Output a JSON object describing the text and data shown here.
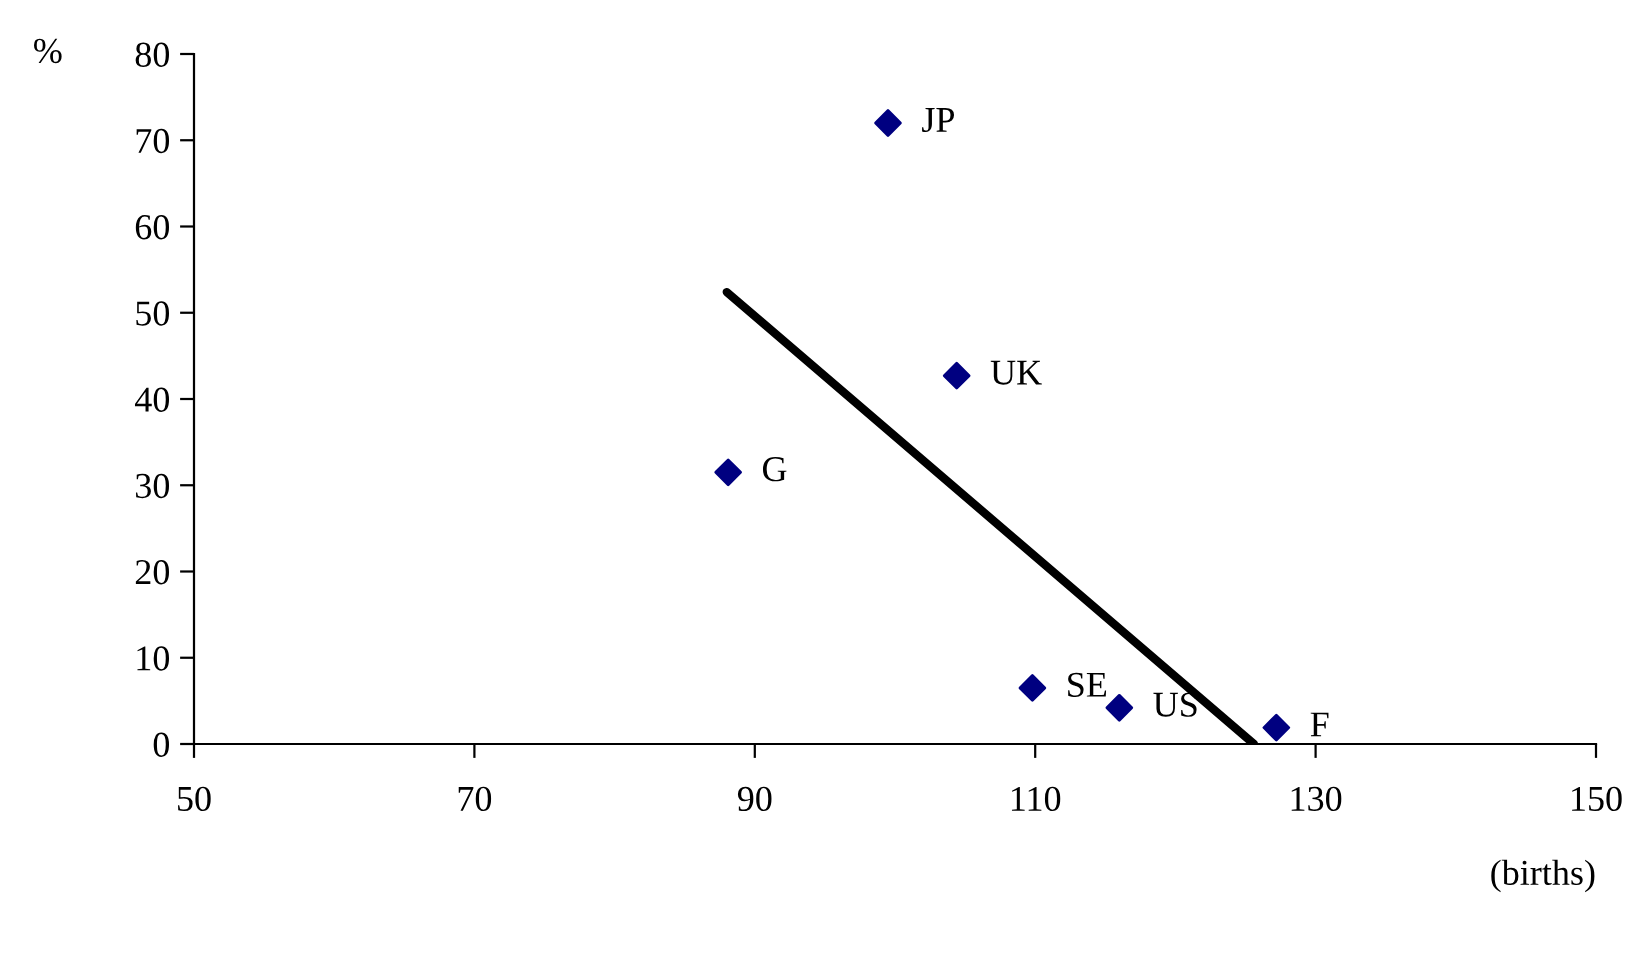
{
  "chart_data": {
    "type": "scatter",
    "ylabel": "%",
    "xlabel": "(births)",
    "xlim": [
      50,
      150
    ],
    "xticks": [
      50,
      70,
      90,
      110,
      130,
      150
    ],
    "ylim": [
      0,
      80
    ],
    "yticks": [
      0,
      10,
      20,
      30,
      40,
      50,
      60,
      70,
      80
    ],
    "grid": false,
    "legend": false,
    "marker": "diamond",
    "series": [
      {
        "color": "#000080",
        "x": [
          99.5,
          104.4,
          88.1,
          109.8,
          116.0,
          127.2
        ],
        "values": [
          72,
          42.7,
          31.5,
          6.5,
          4.2,
          1.9
        ]
      },
      {
        "type": "line",
        "color": "#000000",
        "line_style": "solid",
        "marker": "none",
        "x": [
          88.0,
          125.6
        ],
        "values": [
          52.4,
          0
        ]
      }
    ],
    "annotations": [
      {
        "text": "JP",
        "x": 99.5,
        "y": 72
      },
      {
        "text": "UK",
        "x": 104.4,
        "y": 42.7
      },
      {
        "text": "G",
        "x": 88.1,
        "y": 31.5
      },
      {
        "text": "SE",
        "x": 109.8,
        "y": 6.5
      },
      {
        "text": "US",
        "x": 116.0,
        "y": 4.2
      },
      {
        "text": "F",
        "x": 127.2,
        "y": 1.9
      }
    ]
  }
}
